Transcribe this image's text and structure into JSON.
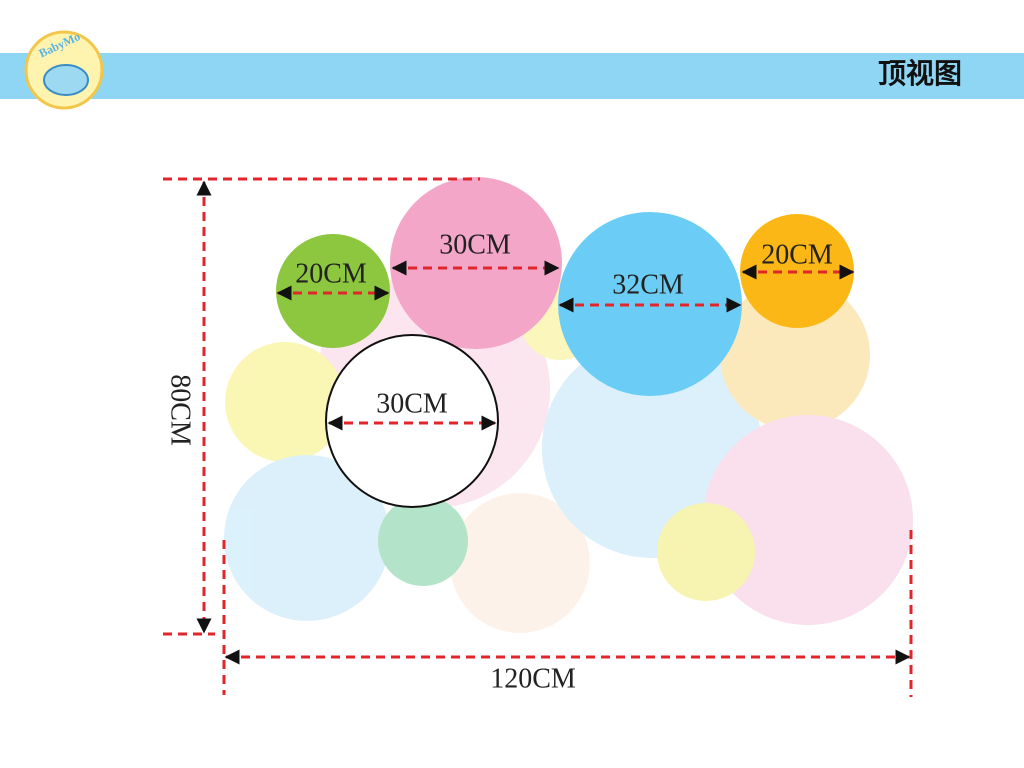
{
  "header": {
    "title": "顶视图",
    "logo": "BabyMo"
  },
  "circles": [
    {
      "label": "20CM"
    },
    {
      "label": "30CM"
    },
    {
      "label": "32CM"
    },
    {
      "label": "20CM"
    },
    {
      "label": "30CM"
    }
  ],
  "dimensions": {
    "height": "80CM",
    "width": "120CM"
  }
}
